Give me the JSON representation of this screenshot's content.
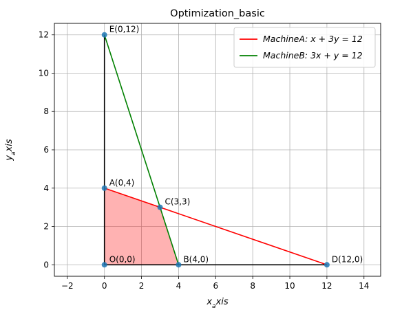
{
  "chart_data": {
    "type": "line",
    "title": "Optimization_basic",
    "xlabel": "x_axis",
    "ylabel": "y_axis",
    "xlim": [
      -2.7,
      14.9
    ],
    "ylim": [
      -0.6,
      12.6
    ],
    "x_ticks": [
      -2,
      0,
      2,
      4,
      6,
      8,
      10,
      12,
      14
    ],
    "y_ticks": [
      0,
      2,
      4,
      6,
      8,
      10,
      12
    ],
    "grid": true,
    "legend_position": "top-right",
    "series": [
      {
        "name": "MachineA: x + 3y = 12",
        "color": "#ff0000",
        "x": [
          0,
          12
        ],
        "y": [
          4,
          0
        ]
      },
      {
        "name": "MachineB: 3x + y = 12",
        "color": "#008000",
        "x": [
          0,
          4
        ],
        "y": [
          12,
          0
        ]
      }
    ],
    "boundary_segments": [
      {
        "color": "#000000",
        "x": [
          0,
          0
        ],
        "y": [
          0,
          12
        ]
      },
      {
        "color": "#000000",
        "x": [
          0,
          12
        ],
        "y": [
          0,
          0
        ]
      }
    ],
    "feasible_region": {
      "color": "#ff0000",
      "opacity": 0.3,
      "vertices": [
        [
          0,
          0
        ],
        [
          0,
          4
        ],
        [
          3,
          3
        ],
        [
          4,
          0
        ]
      ]
    },
    "points": [
      {
        "label": "O(0,0)",
        "x": 0,
        "y": 0
      },
      {
        "label": "A(0,4)",
        "x": 0,
        "y": 4
      },
      {
        "label": "B(4,0)",
        "x": 4,
        "y": 0
      },
      {
        "label": "C(3,3)",
        "x": 3,
        "y": 3
      },
      {
        "label": "D(12,0)",
        "x": 12,
        "y": 0
      },
      {
        "label": "E(0,12)",
        "x": 0,
        "y": 12
      }
    ],
    "marker_color": "#1f77b4"
  }
}
